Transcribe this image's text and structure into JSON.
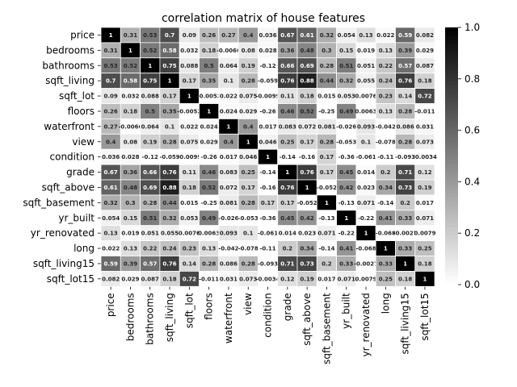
{
  "chart_data": {
    "type": "heatmap",
    "title": "correlation matrix of house features",
    "variables": [
      "price",
      "bedrooms",
      "bathrooms",
      "sqft_living",
      "sqft_lot",
      "floors",
      "waterfront",
      "view",
      "condition",
      "grade",
      "sqft_above",
      "sqft_basement",
      "yr_built",
      "yr_renovated",
      "long",
      "sqft_living15",
      "sqft_lot15"
    ],
    "values": [
      [
        1,
        0.31,
        0.53,
        0.7,
        0.09,
        0.26,
        0.27,
        0.4,
        0.036,
        0.67,
        0.61,
        0.32,
        0.054,
        0.13,
        0.022,
        0.59,
        0.082
      ],
      [
        0.31,
        1,
        0.52,
        0.58,
        0.032,
        0.18,
        -0.0066,
        0.08,
        0.028,
        0.36,
        0.48,
        0.3,
        0.15,
        0.019,
        0.13,
        0.39,
        0.029
      ],
      [
        0.53,
        0.52,
        1,
        0.75,
        0.088,
        0.5,
        0.064,
        0.19,
        -0.12,
        0.66,
        0.69,
        0.28,
        0.51,
        0.051,
        0.22,
        0.57,
        0.087
      ],
      [
        0.7,
        0.58,
        0.75,
        1,
        0.17,
        0.35,
        0.1,
        0.28,
        -0.059,
        0.76,
        0.88,
        0.44,
        0.32,
        0.055,
        0.24,
        0.76,
        0.18
      ],
      [
        0.09,
        0.032,
        0.088,
        0.17,
        1,
        -0.0052,
        0.022,
        0.075,
        -0.0099,
        0.11,
        0.18,
        0.015,
        0.053,
        0.0076,
        0.23,
        0.14,
        0.72
      ],
      [
        0.26,
        0.18,
        0.5,
        0.35,
        -0.0052,
        1,
        0.024,
        0.029,
        -0.26,
        0.46,
        0.52,
        -0.25,
        0.49,
        0.0063,
        0.13,
        0.28,
        -0.011
      ],
      [
        0.27,
        -0.0066,
        0.064,
        0.1,
        0.022,
        0.024,
        1,
        0.4,
        0.017,
        0.083,
        0.072,
        0.081,
        -0.026,
        0.093,
        -0.042,
        0.086,
        0.031
      ],
      [
        0.4,
        0.08,
        0.19,
        0.28,
        0.075,
        0.029,
        0.4,
        1,
        0.046,
        0.25,
        0.17,
        0.28,
        -0.053,
        0.1,
        -0.078,
        0.28,
        0.073
      ],
      [
        0.036,
        0.028,
        -0.12,
        -0.059,
        -0.0099,
        -0.26,
        0.017,
        0.046,
        1,
        -0.14,
        -0.16,
        0.17,
        -0.36,
        -0.061,
        -0.11,
        -0.093,
        -0.0034
      ],
      [
        0.67,
        0.36,
        0.66,
        0.76,
        0.11,
        0.46,
        0.083,
        0.25,
        -0.14,
        1,
        0.76,
        0.17,
        0.45,
        0.014,
        0.2,
        0.71,
        0.12
      ],
      [
        0.61,
        0.48,
        0.69,
        0.88,
        0.18,
        0.52,
        0.072,
        0.17,
        -0.16,
        0.76,
        1,
        -0.052,
        0.42,
        0.023,
        0.34,
        0.73,
        0.19
      ],
      [
        0.32,
        0.3,
        0.28,
        0.44,
        0.015,
        -0.25,
        0.081,
        0.28,
        0.17,
        0.17,
        -0.052,
        1,
        -0.13,
        0.071,
        -0.14,
        0.2,
        0.017
      ],
      [
        0.054,
        0.15,
        0.51,
        0.32,
        0.053,
        0.49,
        -0.026,
        -0.053,
        -0.36,
        0.45,
        0.42,
        -0.13,
        1,
        -0.22,
        0.41,
        0.33,
        0.071
      ],
      [
        0.13,
        0.019,
        0.051,
        0.055,
        0.0076,
        0.0063,
        0.093,
        0.1,
        -0.061,
        0.014,
        0.023,
        0.071,
        -0.22,
        1,
        -0.068,
        -0.0027,
        0.0079
      ],
      [
        0.022,
        0.13,
        0.22,
        0.24,
        0.23,
        0.13,
        -0.042,
        -0.078,
        -0.11,
        0.2,
        0.34,
        -0.14,
        0.41,
        -0.068,
        1,
        0.33,
        0.25
      ],
      [
        0.59,
        0.39,
        0.57,
        0.76,
        0.14,
        0.28,
        0.086,
        0.28,
        -0.093,
        0.71,
        0.73,
        0.2,
        0.33,
        -0.0027,
        0.33,
        1,
        0.18
      ],
      [
        0.082,
        0.029,
        0.087,
        0.18,
        0.72,
        -0.011,
        0.031,
        0.073,
        -0.0034,
        0.12,
        0.19,
        0.017,
        0.071,
        0.0079,
        0.25,
        0.18,
        1
      ]
    ],
    "colormap": "gray_r",
    "color_range": [
      0.0,
      1.0
    ],
    "colorbar_ticks": [
      "0.0",
      "0.2",
      "0.4",
      "0.6",
      "0.8",
      "1.0"
    ],
    "annotations": true,
    "grid_lines_color": "#ffffff"
  }
}
